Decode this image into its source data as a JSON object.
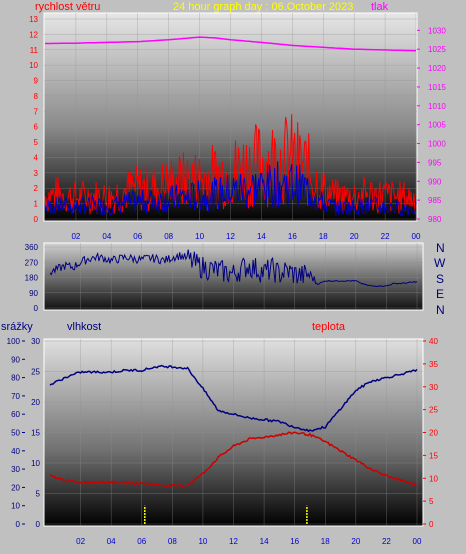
{
  "header": {
    "left_label": "rychlost větru",
    "title": "24 hour graph day : 06.October 2023",
    "right_label": "tlak"
  },
  "lower_header": {
    "left_label": "srážky",
    "mid_label": "vlhkost",
    "right_label": "teplota"
  },
  "colors": {
    "wind_speed": "#ff0000",
    "wind_gust": "#0000cc",
    "pressure": "#ff00ff",
    "title": "#ffff00",
    "direction": "#000080",
    "humidity": "#000080",
    "temperature": "#cc0000",
    "rain": "#ffff00",
    "frame": "#ffffff"
  },
  "chart_data": [
    {
      "type": "line",
      "panel": "wind-pressure",
      "x_ticks": [
        "02",
        "04",
        "06",
        "08",
        "10",
        "12",
        "14",
        "16",
        "18",
        "20",
        "22",
        "00"
      ],
      "y_left": {
        "ticks": [
          "0",
          "1",
          "2",
          "3",
          "4",
          "5",
          "6",
          "7",
          "8",
          "9",
          "10",
          "11",
          "12",
          "13"
        ],
        "range": [
          0,
          13
        ]
      },
      "y_right": {
        "ticks": [
          "980",
          "985",
          "990",
          "995",
          "1000",
          "1005",
          "1010",
          "1015",
          "1020",
          "1025",
          "1030"
        ],
        "range": [
          980,
          1033
        ]
      },
      "series": [
        {
          "axis": "left",
          "x": [
            0,
            1,
            2,
            3,
            4,
            5,
            6,
            7,
            8,
            9,
            10,
            11,
            12,
            13,
            14,
            15,
            16,
            17,
            18,
            19,
            20,
            21,
            22,
            23,
            24
          ],
          "values": [
            1.5,
            1.6,
            1.4,
            1.5,
            1.4,
            1.8,
            2.0,
            2.0,
            2.3,
            2.5,
            2.6,
            2.8,
            3.0,
            3.4,
            3.6,
            3.8,
            3.9,
            3.2,
            1.8,
            1.4,
            1.5,
            1.6,
            1.5,
            1.4,
            1.4
          ]
        },
        {
          "axis": "left",
          "x": [
            0,
            1,
            2,
            3,
            4,
            5,
            6,
            7,
            8,
            9,
            10,
            11,
            12,
            13,
            14,
            15,
            16,
            17,
            18,
            19,
            20,
            21,
            22,
            23,
            24
          ],
          "values": [
            0.8,
            0.9,
            0.8,
            0.9,
            0.8,
            1.0,
            1.1,
            1.2,
            1.3,
            1.4,
            1.5,
            1.6,
            1.8,
            2.0,
            2.1,
            2.2,
            2.3,
            1.9,
            1.0,
            0.7,
            0.8,
            0.9,
            0.8,
            0.7,
            0.7
          ]
        },
        {
          "axis": "right",
          "x": [
            0,
            2,
            4,
            6,
            8,
            10,
            11,
            12,
            14,
            16,
            18,
            20,
            22,
            24
          ],
          "values": [
            1026.5,
            1026.6,
            1026.8,
            1027.0,
            1027.5,
            1028.2,
            1028.0,
            1027.5,
            1026.8,
            1026.0,
            1025.5,
            1025.0,
            1024.8,
            1024.6
          ]
        }
      ]
    },
    {
      "type": "line",
      "panel": "wind-direction",
      "x_ticks": [
        "02",
        "04",
        "06",
        "08",
        "10",
        "12",
        "14",
        "16",
        "18",
        "20",
        "22",
        "00"
      ],
      "y_left": {
        "ticks": [
          "0",
          "90",
          "180",
          "270",
          "360"
        ],
        "range": [
          0,
          360
        ]
      },
      "y_right_labels": [
        "N",
        "W",
        "S",
        "E",
        "N"
      ],
      "series": [
        {
          "x": [
            0,
            0.5,
            1,
            1.5,
            2,
            2.5,
            3,
            3.5,
            4,
            4.5,
            5,
            5.5,
            6,
            6.5,
            7,
            7.5,
            8,
            8.5,
            9,
            9.5,
            10,
            10.5,
            11,
            11.5,
            12,
            12.5,
            13,
            13.5,
            14,
            14.5,
            15,
            15.5,
            16,
            16.5,
            17,
            17.5,
            18,
            18.5,
            19,
            19.5,
            20,
            20.5,
            21,
            21.5,
            22,
            22.5,
            23,
            23.5,
            24
          ],
          "values": [
            210,
            230,
            250,
            240,
            270,
            290,
            300,
            295,
            280,
            290,
            300,
            290,
            285,
            295,
            290,
            280,
            300,
            310,
            290,
            260,
            240,
            230,
            220,
            210,
            200,
            230,
            250,
            230,
            210,
            230,
            200,
            220,
            200,
            190,
            200,
            140,
            160,
            160,
            160,
            160,
            160,
            140,
            130,
            130,
            130,
            145,
            145,
            150,
            155
          ]
        }
      ]
    },
    {
      "type": "line",
      "panel": "humidity-temperature-rain",
      "x_ticks": [
        "02",
        "04",
        "06",
        "08",
        "10",
        "12",
        "14",
        "16",
        "18",
        "20",
        "22",
        "00"
      ],
      "y_left": {
        "ticks": [
          "0",
          "10",
          "20",
          "30",
          "40",
          "50",
          "60",
          "70",
          "80",
          "90",
          "100"
        ],
        "range": [
          0,
          100
        ]
      },
      "y_mid": {
        "ticks": [
          "0",
          "5",
          "10",
          "15",
          "20",
          "25",
          "30"
        ],
        "range": [
          0,
          30
        ]
      },
      "y_right": {
        "ticks": [
          "0",
          "5",
          "10",
          "15",
          "20",
          "25",
          "30",
          "35",
          "40"
        ],
        "range": [
          0,
          40
        ]
      },
      "series": [
        {
          "axis": "left",
          "x": [
            0,
            0.5,
            1,
            2,
            3,
            4,
            5,
            6,
            7,
            8,
            9,
            10,
            11,
            12,
            13,
            14,
            15,
            16,
            17,
            18,
            19,
            20,
            21,
            22,
            23,
            24
          ],
          "values": [
            76,
            78,
            80,
            83,
            83,
            83,
            84,
            84,
            86,
            86,
            85,
            74,
            62,
            60,
            58,
            57,
            56,
            53,
            51,
            53,
            63,
            73,
            78,
            80,
            82,
            84
          ]
        },
        {
          "axis": "right",
          "x": [
            0,
            0.5,
            1,
            2,
            3,
            4,
            5,
            6,
            7,
            8,
            9,
            10,
            11,
            12,
            13,
            14,
            15,
            16,
            17,
            18,
            19,
            20,
            21,
            22,
            23,
            24
          ],
          "values": [
            10.5,
            10,
            9.5,
            9,
            9.2,
            9.1,
            9,
            8.9,
            8.6,
            8.3,
            8.5,
            11,
            14.5,
            17,
            18.5,
            19,
            19.5,
            20,
            19.5,
            18,
            16,
            14,
            12,
            10.5,
            9.5,
            8.5
          ]
        },
        {
          "axis": "mid",
          "x": [
            6.2,
            16.8
          ],
          "values": [
            3,
            3
          ]
        }
      ]
    }
  ]
}
